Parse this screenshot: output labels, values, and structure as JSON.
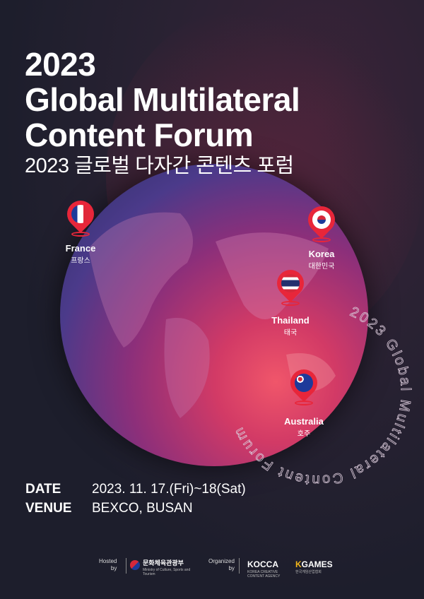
{
  "title": {
    "year": "2023",
    "line1": "Global Multilateral",
    "line2": "Content Forum",
    "korean": "2023 글로벌 다자간 콘텐츠 포럼"
  },
  "ring_text": "2023 Global Multilateral Content Forum",
  "pins": [
    {
      "name": "France",
      "korean": "프랑스",
      "flag": "france"
    },
    {
      "name": "Korea",
      "korean": "대한민국",
      "flag": "korea"
    },
    {
      "name": "Thailand",
      "korean": "태국",
      "flag": "thailand"
    },
    {
      "name": "Australia",
      "korean": "호주",
      "flag": "australia"
    }
  ],
  "info": {
    "date_label": "DATE",
    "date_value": "2023. 11. 17.(Fri)~18(Sat)",
    "venue_label": "VENUE",
    "venue_value": "BEXCO, BUSAN"
  },
  "footer": {
    "hosted": "Hosted",
    "by": "by",
    "ministry": "문화체육관광부",
    "ministry_en": "Ministry of Culture, Sports and Tourism",
    "organized": "Organized",
    "by2": "by",
    "kocca": "KOCCA",
    "kocca_en": "KOREA CREATIVE CONTENT AGENCY",
    "kgames": "GAMES",
    "kgames_k": "K",
    "kgames_en": "한국게임산업협회"
  },
  "colors": {
    "background": "#1d1e2c",
    "pin": "#e8263a",
    "globe_hot": "#f0566a",
    "globe_cool": "#2c2f66"
  }
}
